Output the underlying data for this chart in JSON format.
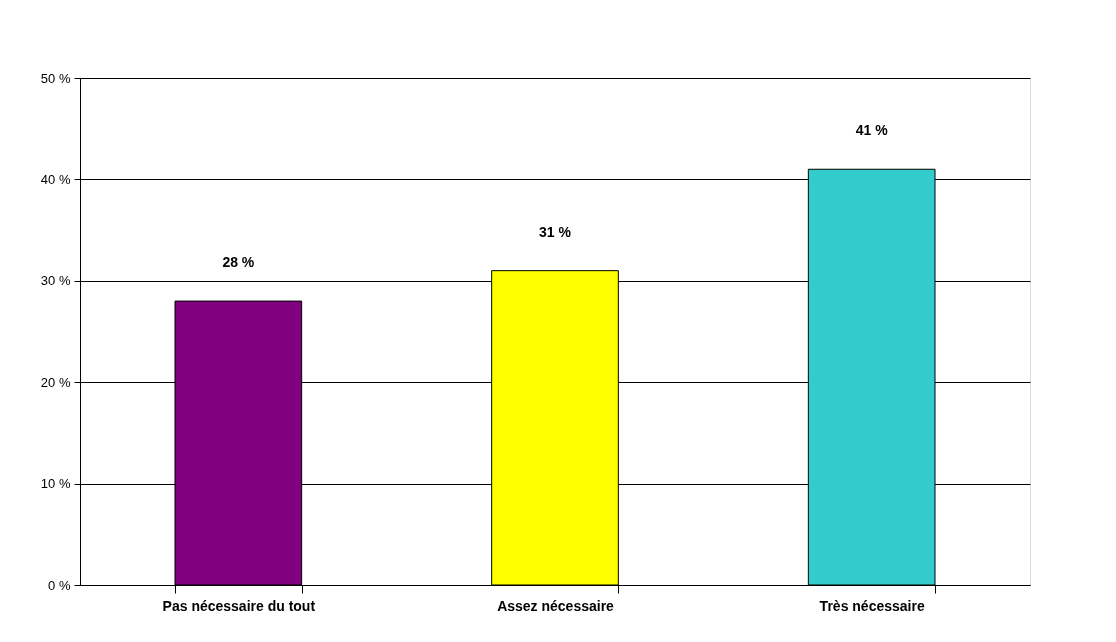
{
  "chart_data": {
    "type": "bar",
    "categories": [
      "Pas nécessaire du tout",
      "Assez nécessaire",
      "Très nécessaire"
    ],
    "values": [
      28,
      31,
      41
    ],
    "colors": [
      "#800080",
      "#ffff00",
      "#33cccc"
    ],
    "ylim": [
      0,
      50
    ],
    "yticks": [
      {
        "value": 0,
        "label": "0 %"
      },
      {
        "value": 10,
        "label": "10 %"
      },
      {
        "value": 20,
        "label": "20 %"
      },
      {
        "value": 30,
        "label": "30 %"
      },
      {
        "value": 40,
        "label": "40 %"
      },
      {
        "value": 50,
        "label": "50 %"
      }
    ],
    "value_labels": [
      "28 %",
      "31 %",
      "41 %"
    ],
    "grid": "y"
  }
}
